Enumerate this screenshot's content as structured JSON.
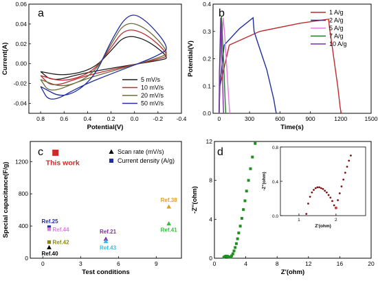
{
  "chart_data": [
    {
      "panel": "a",
      "type": "line",
      "xlabel": "Potential(V)",
      "ylabel": "Current(A)",
      "xlim": [
        0.9,
        -0.4
      ],
      "ylim": [
        -0.05,
        0.06
      ],
      "x_ticks": [
        0.8,
        0.6,
        0.4,
        0.2,
        0.0,
        -0.2,
        -0.4
      ],
      "x_tick_labels": [
        "0.8",
        "0.6",
        "0.4",
        "0.2",
        "0.0",
        "-0.2",
        "-0.4"
      ],
      "y_ticks": [
        -0.04,
        -0.02,
        0.0,
        0.02,
        0.04,
        0.06
      ],
      "y_tick_labels": [
        "-0.04",
        "-0.02",
        "0.00",
        "0.02",
        "0.04",
        "0.06"
      ],
      "legend_position": "bottom-right",
      "series": [
        {
          "name": "5 mV/s",
          "color": "#1a1a1a",
          "peak": [
            0.05,
            0.029
          ],
          "trough": [
            0.7,
            -0.018
          ],
          "end_upper": [
            0.8,
            -0.008
          ],
          "end_lower": [
            -0.3,
            0.006
          ]
        },
        {
          "name": "10 mV/s",
          "color": "#c0282d",
          "peak": [
            0.05,
            0.036
          ],
          "trough": [
            0.7,
            -0.024
          ],
          "end_upper": [
            0.8,
            -0.012
          ],
          "end_lower": [
            -0.3,
            0.0085
          ]
        },
        {
          "name": "20 mV/s",
          "color": "#6b6b3a",
          "peak": [
            0.05,
            0.043
          ],
          "trough": [
            0.72,
            -0.03
          ],
          "end_upper": [
            0.8,
            -0.016
          ],
          "end_lower": [
            -0.3,
            0.011
          ]
        },
        {
          "name": "50 mV/s",
          "color": "#1f2d9e",
          "peak": [
            0.02,
            0.052
          ],
          "trough": [
            0.72,
            -0.04
          ],
          "end_upper": [
            0.8,
            -0.023
          ],
          "end_lower": [
            -0.3,
            0.016
          ]
        }
      ]
    },
    {
      "panel": "b",
      "type": "line",
      "xlabel": "Time(s)",
      "ylabel": "Potential(V)",
      "xlim": [
        -60,
        1500
      ],
      "ylim": [
        0.0,
        0.4
      ],
      "x_ticks": [
        0,
        300,
        600,
        900,
        1200,
        1500
      ],
      "x_tick_labels": [
        "0",
        "300",
        "600",
        "900",
        "1200",
        "1500"
      ],
      "y_ticks": [
        0.0,
        0.1,
        0.2,
        0.3,
        0.4
      ],
      "y_tick_labels": [
        "0.0",
        "0.1",
        "0.2",
        "0.3",
        "0.4"
      ],
      "legend_position": "top-right",
      "series": [
        {
          "name": "1 A/g",
          "color": "#c0282d",
          "x": [
            0,
            8,
            100,
            400,
            800,
            1080,
            1090,
            1110,
            1170,
            1195,
            1205
          ],
          "y": [
            0.0,
            0.1,
            0.25,
            0.3,
            0.33,
            0.345,
            0.31,
            0.26,
            0.1,
            0.02,
            0.0
          ]
        },
        {
          "name": "2 A/g",
          "color": "#1f2d9e",
          "x": [
            0,
            6,
            50,
            200,
            335,
            345,
            380,
            470,
            540,
            558,
            565
          ],
          "y": [
            0.0,
            0.1,
            0.25,
            0.31,
            0.35,
            0.3,
            0.26,
            0.16,
            0.05,
            0.01,
            0.0
          ]
        },
        {
          "name": "5 A/g",
          "color": "#e07be0",
          "x": [
            0,
            6,
            40,
            52,
            70,
            95,
            105
          ],
          "y": [
            0.0,
            0.15,
            0.35,
            0.3,
            0.2,
            0.05,
            0.0
          ]
        },
        {
          "name": "7 A/g",
          "color": "#1f7a1f",
          "x": [
            0,
            4,
            22,
            30,
            45,
            60,
            66
          ],
          "y": [
            0.0,
            0.15,
            0.355,
            0.3,
            0.18,
            0.04,
            0.0
          ]
        },
        {
          "name": "10 A/g",
          "color": "#7b2fa6",
          "x": [
            0,
            3,
            15,
            20,
            30,
            40,
            44
          ],
          "y": [
            0.0,
            0.15,
            0.35,
            0.3,
            0.18,
            0.04,
            0.0
          ]
        }
      ]
    },
    {
      "panel": "c",
      "type": "scatter",
      "xlabel": "Test conditions",
      "ylabel": "Special capacitance(F/g)",
      "xlim": [
        -1,
        11
      ],
      "ylim": [
        0,
        1450
      ],
      "x_ticks": [
        0,
        3,
        6,
        9
      ],
      "x_tick_labels": [
        "0",
        "3",
        "6",
        "9"
      ],
      "y_ticks": [
        0,
        400,
        800,
        1200
      ],
      "y_tick_labels": [
        "0",
        "400",
        "800",
        "1200"
      ],
      "legend_position": "top-right",
      "legend": [
        {
          "name": "Scan rate (mV/s)",
          "marker": "triangle",
          "color": "#000000"
        },
        {
          "name": "Current density (A/g)",
          "marker": "square",
          "color": "#1f2d9e"
        }
      ],
      "points": [
        {
          "label": "This work",
          "x": 1,
          "y": 1310,
          "marker": "square",
          "color": "#d62728"
        },
        {
          "label": "Ref.25",
          "x": 0.5,
          "y": 385,
          "marker": "square",
          "color": "#1f2d9e"
        },
        {
          "label": "Ref.44",
          "x": 0.5,
          "y": 360,
          "marker": "square",
          "color": "#e07be0"
        },
        {
          "label": "Ref.42",
          "x": 0.5,
          "y": 200,
          "marker": "square",
          "color": "#8b8b00"
        },
        {
          "label": "Ref.40",
          "x": 0.5,
          "y": 135,
          "marker": "triangle",
          "color": "#000000"
        },
        {
          "label": "Ref.21",
          "x": 5,
          "y": 240,
          "marker": "triangle",
          "color": "#7b2fa6"
        },
        {
          "label": "Ref.43",
          "x": 5,
          "y": 210,
          "marker": "triangle",
          "color": "#2fbfe0"
        },
        {
          "label": "Ref.38",
          "x": 10,
          "y": 640,
          "marker": "triangle",
          "color": "#e0a020"
        },
        {
          "label": "Ref.41",
          "x": 10,
          "y": 430,
          "marker": "triangle",
          "color": "#2fbf3f"
        }
      ]
    },
    {
      "panel": "d",
      "type": "scatter",
      "xlabel": "Z'(ohm)",
      "ylabel": "-Z''(ohm)",
      "xlim": [
        0,
        20
      ],
      "ylim": [
        0,
        12
      ],
      "x_ticks": [
        0,
        4,
        8,
        12,
        16,
        20
      ],
      "x_tick_labels": [
        "0",
        "4",
        "8",
        "12",
        "16",
        "20"
      ],
      "y_ticks": [
        0,
        4,
        8,
        12
      ],
      "y_tick_labels": [
        "0",
        "4",
        "8",
        "12"
      ],
      "marker_color": "#1f8f1f",
      "x": [
        1.2,
        1.35,
        1.5,
        1.65,
        1.8,
        1.95,
        2.1,
        2.2,
        2.35,
        2.5,
        2.65,
        2.8,
        2.95,
        3.1,
        3.3,
        3.5,
        3.7,
        3.9,
        4.1,
        4.35,
        4.6,
        4.85,
        5.2
      ],
      "y": [
        0.1,
        0.18,
        0.22,
        0.2,
        0.15,
        0.1,
        0.12,
        0.25,
        0.45,
        0.75,
        1.1,
        1.5,
        2.0,
        2.6,
        3.3,
        4.1,
        5.0,
        5.9,
        6.9,
        8.0,
        9.2,
        10.4,
        11.8
      ],
      "inset": {
        "type": "scatter",
        "xlabel": "Z'(ohm)",
        "ylabel": "-Z''(ohm)",
        "xlim": [
          0.5,
          2.8
        ],
        "ylim": [
          0,
          0.8
        ],
        "x_ticks": [
          1,
          2
        ],
        "x_tick_labels": [
          "1",
          "2"
        ],
        "y_ticks": [
          0.0,
          0.4,
          0.8
        ],
        "y_tick_labels": [
          "0.0",
          "0.4",
          "0.8"
        ],
        "marker_color": "#7a1010",
        "highlight_color": "#e03030",
        "x": [
          1.2,
          1.25,
          1.3,
          1.35,
          1.4,
          1.45,
          1.5,
          1.55,
          1.6,
          1.65,
          1.7,
          1.75,
          1.8,
          1.85,
          1.9,
          1.95,
          2.0,
          2.05,
          2.1,
          2.15,
          2.2,
          2.25,
          2.3,
          2.35,
          2.4
        ],
        "y": [
          0.02,
          0.14,
          0.22,
          0.27,
          0.3,
          0.32,
          0.33,
          0.33,
          0.32,
          0.31,
          0.29,
          0.27,
          0.24,
          0.21,
          0.17,
          0.12,
          0.09,
          0.18,
          0.26,
          0.34,
          0.42,
          0.5,
          0.57,
          0.64,
          0.7
        ]
      }
    }
  ]
}
